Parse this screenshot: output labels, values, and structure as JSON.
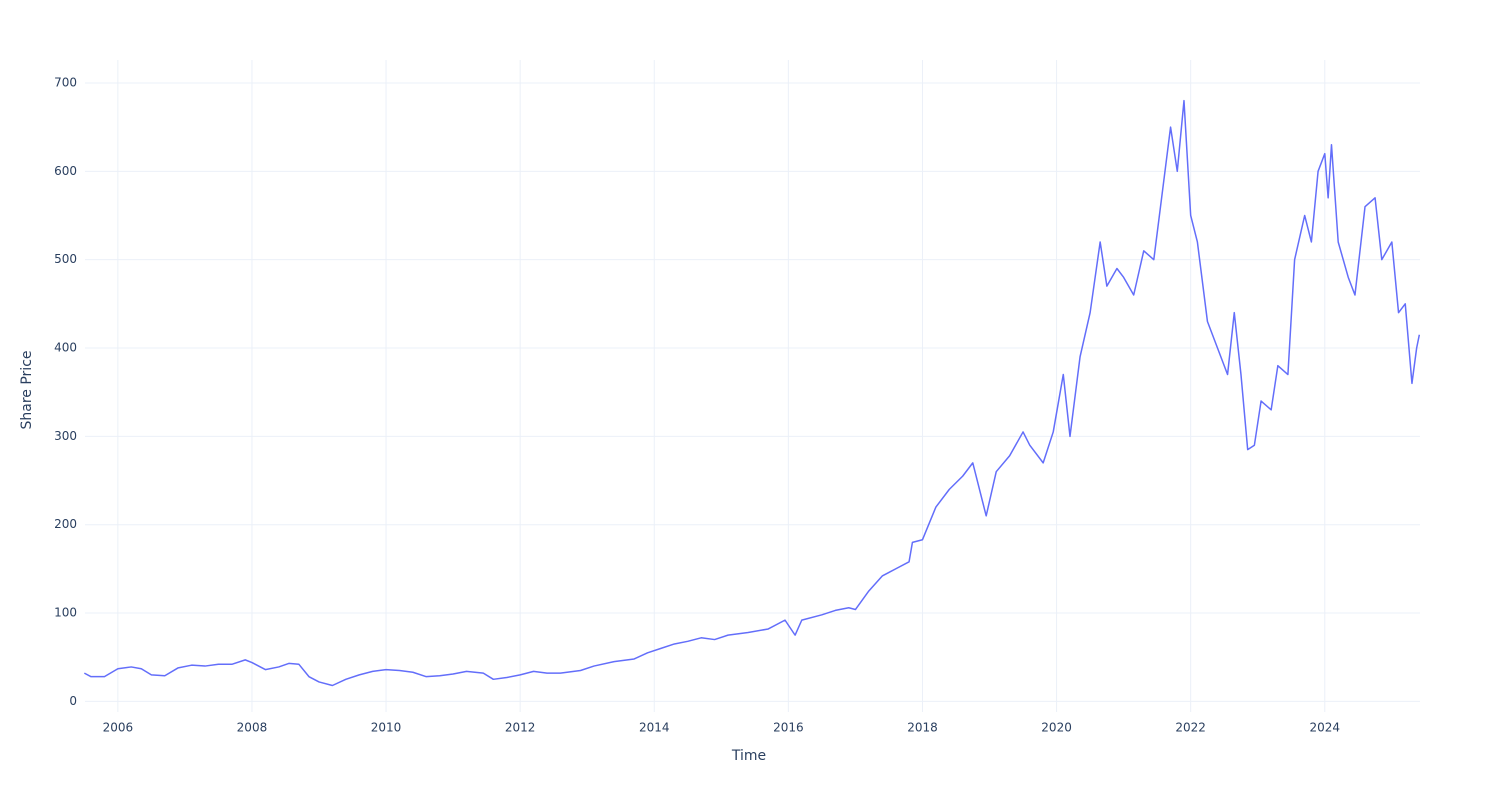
{
  "chart_data": {
    "type": "line",
    "xlabel": "Time",
    "ylabel": "Share Price",
    "x": [
      2005.5,
      2005.6,
      2005.8,
      2006.0,
      2006.2,
      2006.35,
      2006.5,
      2006.7,
      2006.9,
      2007.1,
      2007.3,
      2007.5,
      2007.7,
      2007.9,
      2008.0,
      2008.2,
      2008.4,
      2008.55,
      2008.7,
      2008.85,
      2009.0,
      2009.2,
      2009.4,
      2009.6,
      2009.8,
      2010.0,
      2010.2,
      2010.4,
      2010.6,
      2010.8,
      2011.0,
      2011.2,
      2011.45,
      2011.6,
      2011.8,
      2012.0,
      2012.2,
      2012.4,
      2012.6,
      2012.9,
      2013.1,
      2013.4,
      2013.7,
      2013.9,
      2014.1,
      2014.3,
      2014.5,
      2014.7,
      2014.9,
      2015.1,
      2015.4,
      2015.7,
      2015.95,
      2016.1,
      2016.2,
      2016.5,
      2016.7,
      2016.9,
      2017.0,
      2017.2,
      2017.4,
      2017.6,
      2017.8,
      2017.85,
      2018.0,
      2018.2,
      2018.4,
      2018.6,
      2018.75,
      2018.9,
      2018.95,
      2019.1,
      2019.3,
      2019.5,
      2019.6,
      2019.8,
      2019.95,
      2020.1,
      2020.2,
      2020.35,
      2020.5,
      2020.65,
      2020.75,
      2020.9,
      2021.0,
      2021.15,
      2021.3,
      2021.45,
      2021.55,
      2021.7,
      2021.8,
      2021.9,
      2022.0,
      2022.1,
      2022.25,
      2022.4,
      2022.55,
      2022.65,
      2022.75,
      2022.85,
      2022.95,
      2023.05,
      2023.2,
      2023.3,
      2023.45,
      2023.55,
      2023.7,
      2023.8,
      2023.9,
      2024.0,
      2024.05,
      2024.1,
      2024.2,
      2024.35,
      2024.45,
      2024.6,
      2024.75,
      2024.85,
      2025.0,
      2025.1,
      2025.2,
      2025.3,
      2025.37,
      2025.41
    ],
    "series": [
      {
        "name": "Share Price",
        "color": "#636efa",
        "values": [
          32,
          28,
          28,
          37,
          39,
          37,
          30,
          29,
          38,
          41,
          40,
          42,
          42,
          47,
          44,
          36,
          39,
          43,
          42,
          28,
          22,
          18,
          25,
          30,
          34,
          36,
          35,
          33,
          28,
          29,
          31,
          34,
          32,
          25,
          27,
          30,
          34,
          32,
          32,
          35,
          40,
          45,
          48,
          55,
          60,
          65,
          68,
          72,
          70,
          75,
          78,
          82,
          92,
          75,
          92,
          98,
          103,
          106,
          104,
          125,
          142,
          150,
          158,
          180,
          183,
          220,
          240,
          255,
          270,
          225,
          210,
          260,
          278,
          305,
          290,
          270,
          305,
          370,
          300,
          390,
          440,
          520,
          470,
          490,
          480,
          460,
          510,
          500,
          560,
          650,
          600,
          680,
          550,
          520,
          430,
          400,
          370,
          440,
          370,
          285,
          290,
          340,
          330,
          380,
          370,
          500,
          550,
          520,
          600,
          620,
          570,
          630,
          520,
          480,
          460,
          560,
          570,
          500,
          520,
          440,
          450,
          360,
          400,
          415
        ]
      }
    ],
    "xlim": [
      2005.51,
      2025.42
    ],
    "xticks": [
      2006,
      2008,
      2010,
      2012,
      2014,
      2016,
      2018,
      2020,
      2022,
      2024
    ],
    "ylim": [
      -12,
      726
    ],
    "yticks": [
      0,
      100,
      200,
      300,
      400,
      500,
      600,
      700
    ],
    "grid": true
  }
}
